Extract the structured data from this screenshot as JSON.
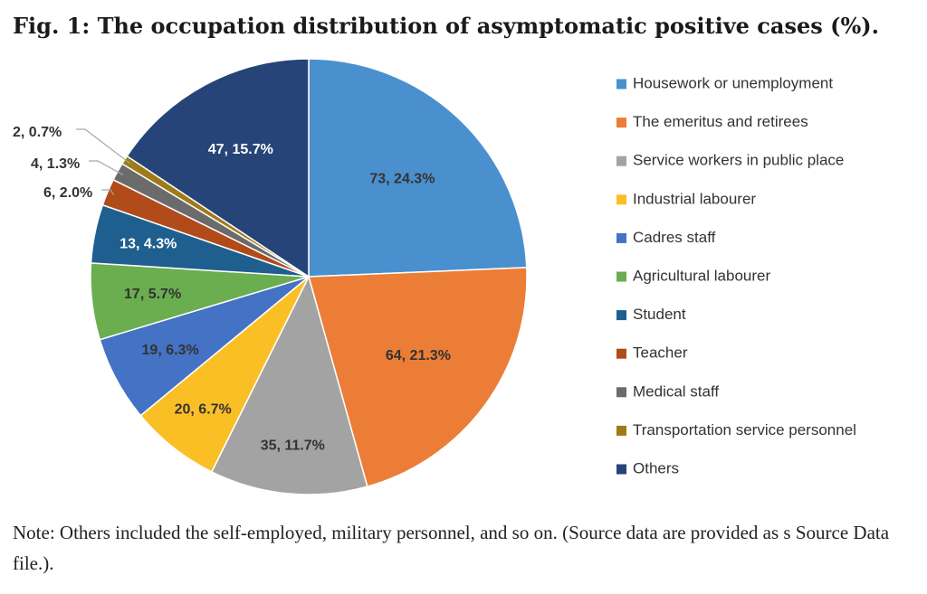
{
  "figure": {
    "title": "Fig. 1: The occupation distribution of asymptomatic positive cases (%).",
    "note": "Note: Others included the self-employed, military personnel, and so on. (Source data are provided as s Source Data file.)."
  },
  "chart_data": {
    "type": "pie",
    "title": "Fig. 1: The occupation distribution of asymptomatic positive cases (%).",
    "legend_position": "right",
    "slices": [
      {
        "name": "Housework or unemployment",
        "count": 73,
        "percent": 24.3,
        "label": "73, 24.3%",
        "color": "#4a90cf",
        "label_color": "#333333"
      },
      {
        "name": "The emeritus and retirees",
        "count": 64,
        "percent": 21.3,
        "label": "64, 21.3%",
        "color": "#ec7d36",
        "label_color": "#333333"
      },
      {
        "name": "Service workers in public place",
        "count": 35,
        "percent": 11.7,
        "label": "35, 11.7%",
        "color": "#a3a3a3",
        "label_color": "#333333"
      },
      {
        "name": "Industrial labourer",
        "count": 20,
        "percent": 6.7,
        "label": "20, 6.7%",
        "color": "#fbbf26",
        "label_color": "#333333"
      },
      {
        "name": "Cadres staff",
        "count": 19,
        "percent": 6.3,
        "label": "19, 6.3%",
        "color": "#4472c4",
        "label_color": "#333333"
      },
      {
        "name": "Agricultural labourer",
        "count": 17,
        "percent": 5.7,
        "label": "17, 5.7%",
        "color": "#6aae4f",
        "label_color": "#333333"
      },
      {
        "name": "Student",
        "count": 13,
        "percent": 4.3,
        "label": "13, 4.3%",
        "color": "#1f5f8f",
        "label_color": "#ffffff"
      },
      {
        "name": "Teacher",
        "count": 6,
        "percent": 2.0,
        "label": "6, 2.0%",
        "color": "#b14b19",
        "label_color": "#333333"
      },
      {
        "name": "Medical staff",
        "count": 4,
        "percent": 1.3,
        "label": "4, 1.3%",
        "color": "#6b6b6b",
        "label_color": "#333333"
      },
      {
        "name": "Transportation service personnel",
        "count": 2,
        "percent": 0.7,
        "label": "2, 0.7%",
        "color": "#9e7b17",
        "label_color": "#333333"
      },
      {
        "name": "Others",
        "count": 47,
        "percent": 15.7,
        "label": "47, 15.7%",
        "color": "#264478",
        "label_color": "#ffffff"
      }
    ]
  }
}
